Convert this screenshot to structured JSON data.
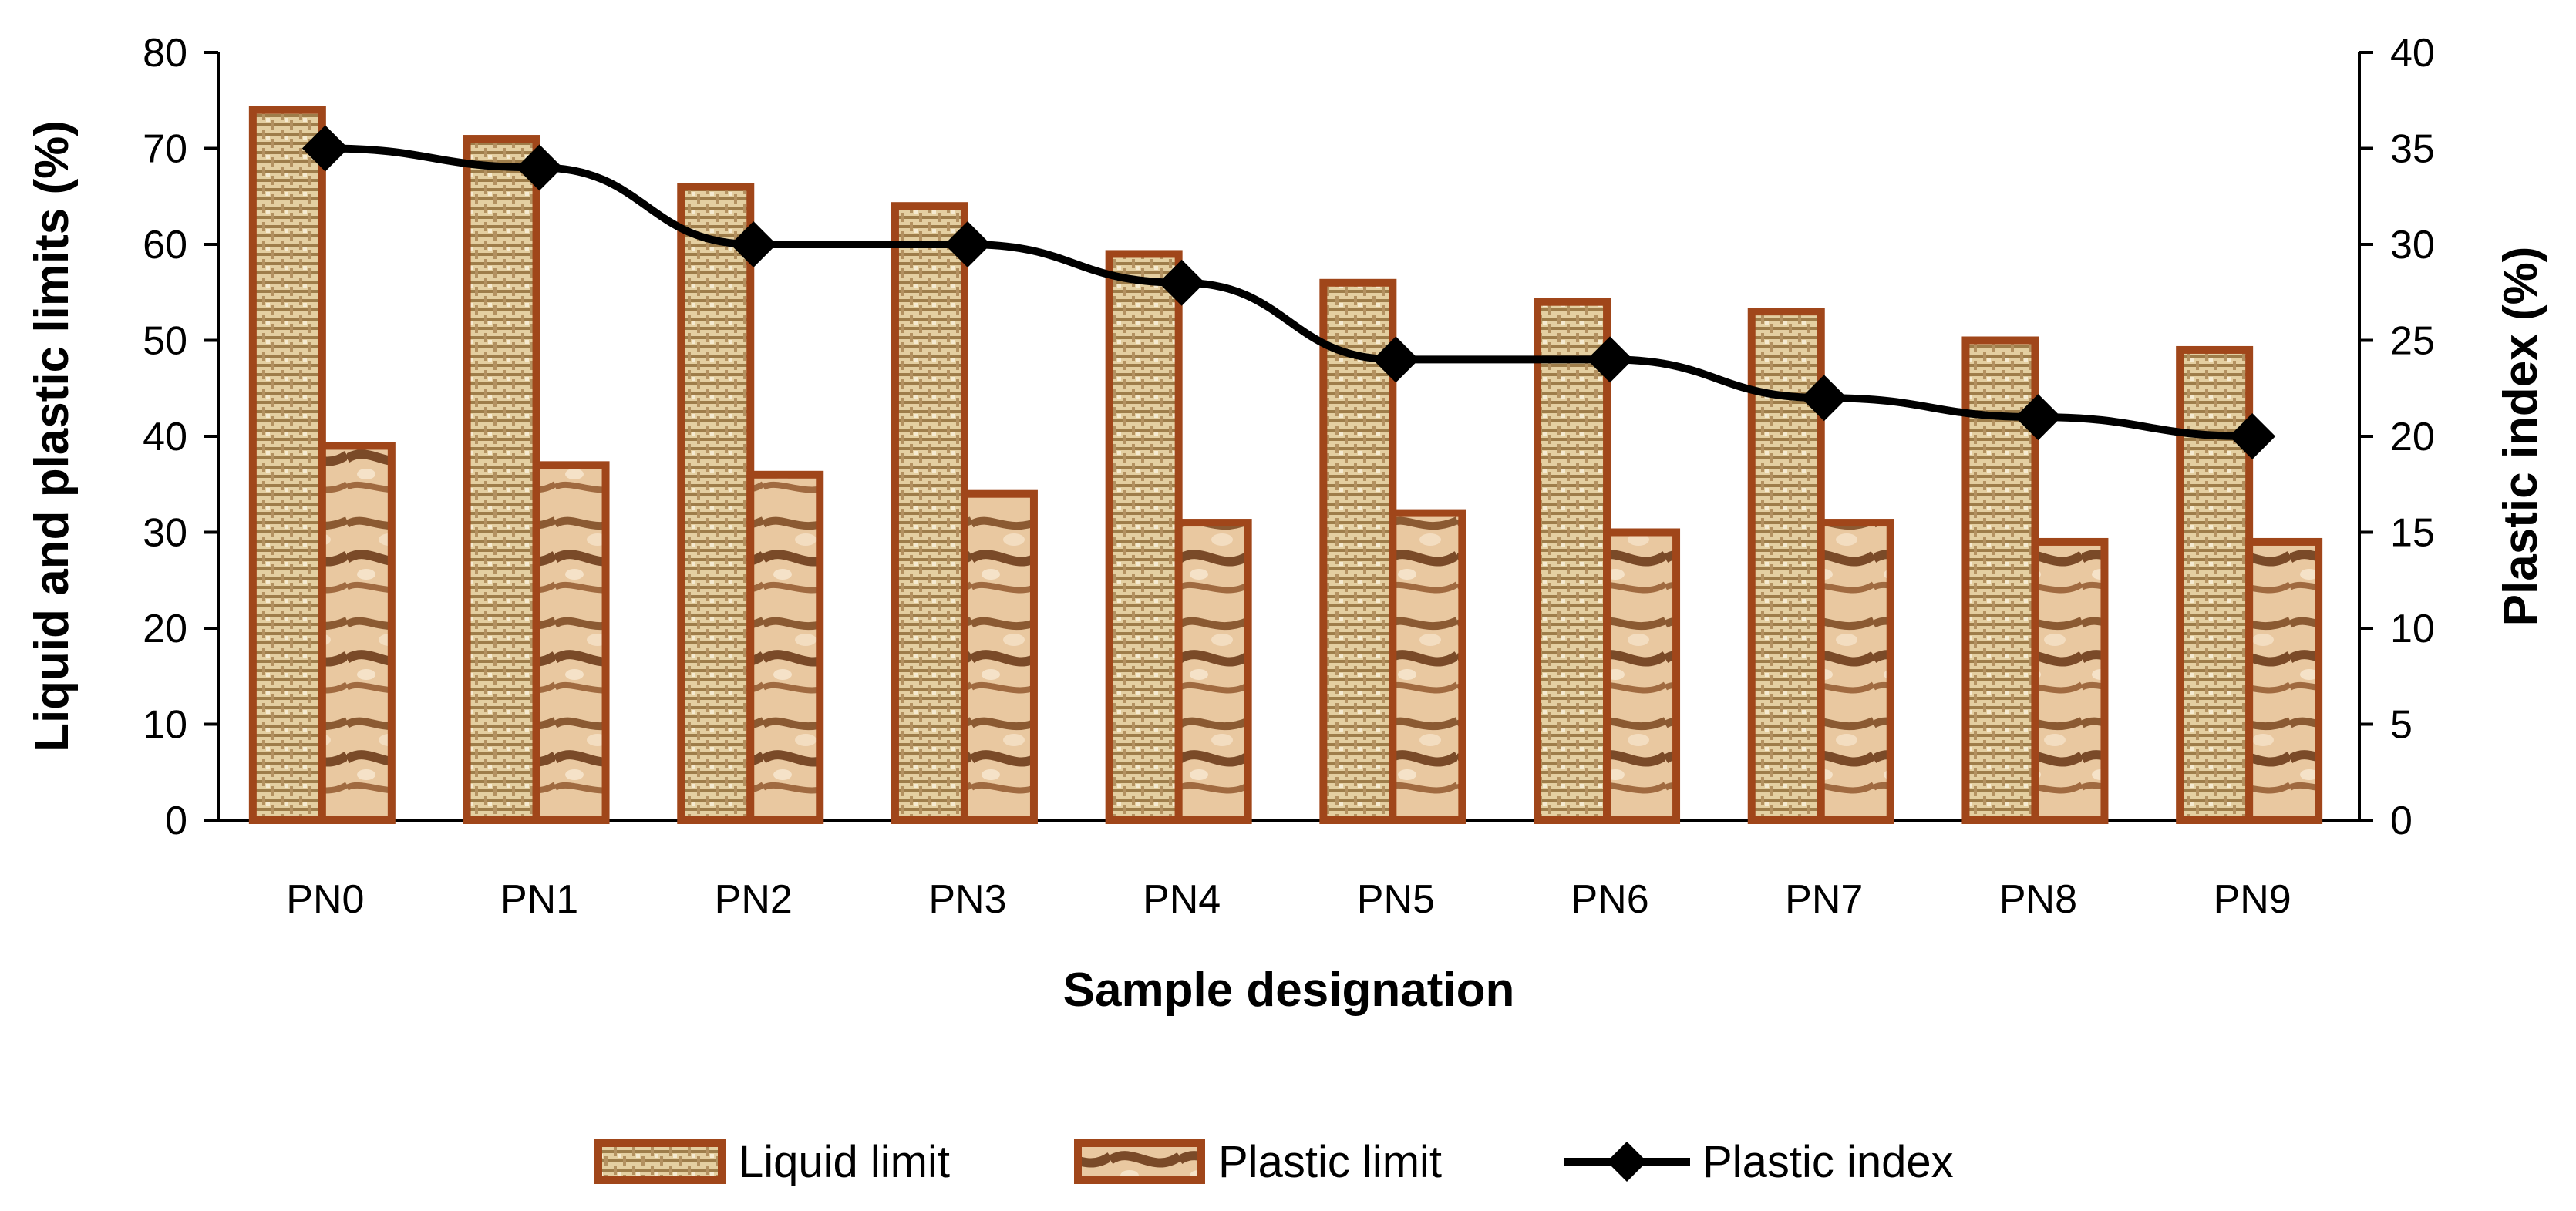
{
  "chart_data": {
    "type": "bar",
    "categories": [
      "PN0",
      "PN1",
      "PN2",
      "PN3",
      "PN4",
      "PN5",
      "PN6",
      "PN7",
      "PN8",
      "PN9"
    ],
    "series": [
      {
        "name": "Liquid limit",
        "type": "bar",
        "axis": "left",
        "values": [
          74,
          71,
          66,
          64,
          59,
          56,
          54,
          53,
          50,
          49
        ]
      },
      {
        "name": "Plastic limit",
        "type": "bar",
        "axis": "left",
        "values": [
          39,
          37,
          36,
          34,
          31,
          32,
          30,
          31,
          29,
          29
        ]
      },
      {
        "name": "Plastic index",
        "type": "line",
        "axis": "right",
        "marker": "diamond",
        "values": [
          35,
          34,
          30,
          30,
          28,
          24,
          24,
          22,
          21,
          20
        ]
      }
    ],
    "xlabel": "Sample designation",
    "ylabel": "Liquid and plastic limits (%)",
    "y2label": "Plastic index (%)",
    "ylim": [
      0,
      80
    ],
    "y2lim": [
      0,
      40
    ],
    "yticks": [
      0,
      10,
      20,
      30,
      40,
      50,
      60,
      70,
      80
    ],
    "y2ticks": [
      0,
      5,
      10,
      15,
      20,
      25,
      30,
      35,
      40
    ],
    "grid": false,
    "legend_position": "bottom",
    "colors": {
      "bar_border": "#A0461A",
      "liquid_fill": "#E4CFA1",
      "plastic_fill": "#EAC9A2",
      "line": "#000000"
    }
  }
}
